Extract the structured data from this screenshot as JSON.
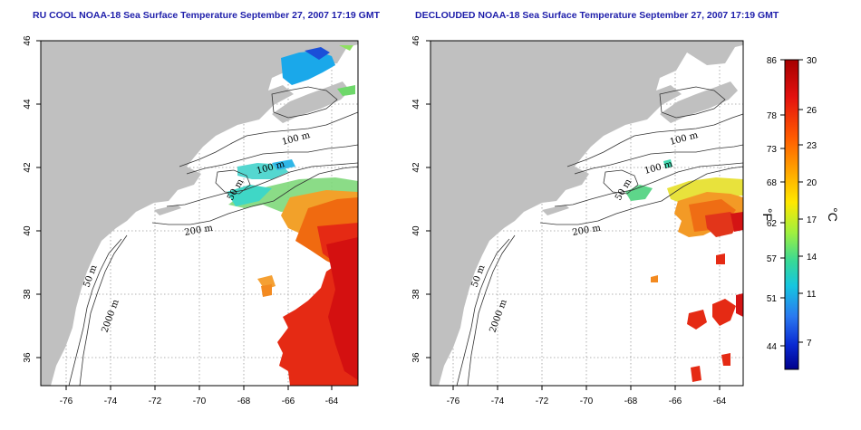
{
  "panels": [
    {
      "title": "RU COOL NOAA-18 Sea Surface Temperature September 27, 2007 17:19 GMT",
      "xticks": [
        "-76",
        "-74",
        "-72",
        "-70",
        "-68",
        "-66",
        "-64"
      ],
      "yticks": [
        "46",
        "44",
        "42",
        "40",
        "38",
        "36"
      ],
      "contour_labels": [
        "100 m",
        "100 m",
        "50 m",
        "200 m",
        "50 m",
        "2000 m"
      ],
      "coverage": "cloud-screened",
      "ocean_color": "#ffffff",
      "land_color": "#c0c0c0"
    },
    {
      "title": "DECLOUDED NOAA-18 Sea Surface Temperature September 27, 2007 17:19 GMT",
      "xticks": [
        "-76",
        "-74",
        "-72",
        "-70",
        "-68",
        "-66",
        "-64"
      ],
      "yticks": [
        "46",
        "44",
        "42",
        "40",
        "38",
        "36"
      ],
      "contour_labels": [
        "100 m",
        "100 m",
        "50 m",
        "200 m",
        "50 m",
        "2000 m"
      ],
      "coverage": "declouded",
      "ocean_color": "#ffffff",
      "land_color": "#c0c0c0"
    }
  ],
  "colorbar": {
    "fahrenheit_ticks": [
      "86",
      "78",
      "73",
      "68",
      "62",
      "57",
      "51",
      "44"
    ],
    "celsius_ticks": [
      "30",
      "26",
      "23",
      "20",
      "17",
      "14",
      "11",
      "7"
    ],
    "fahrenheit_unit": "°F",
    "celsius_unit": "°C",
    "colors": [
      "#b20000",
      "#e31a1c",
      "#ff6a00",
      "#ffb000",
      "#ffe600",
      "#b8f03c",
      "#41d98a",
      "#19c8d8",
      "#2a7df0",
      "#0a28d0",
      "#00008a"
    ]
  }
}
